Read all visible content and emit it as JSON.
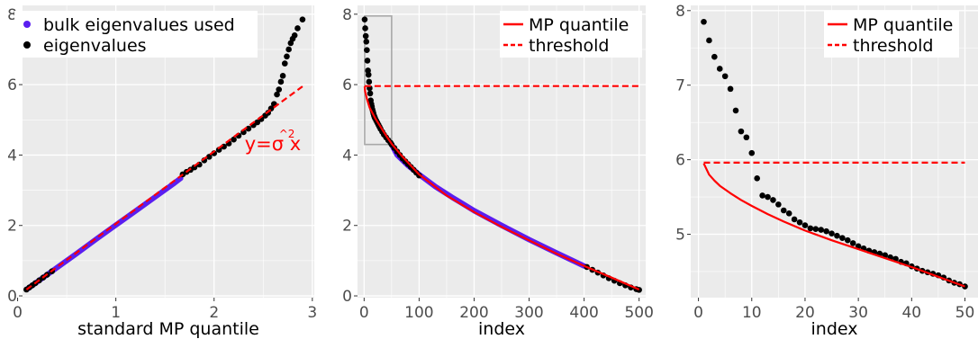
{
  "chart_data": [
    {
      "type": "scatter",
      "xlabel": "standard MP quantile",
      "ylabel": "",
      "xlim": [
        0.05,
        3.02
      ],
      "ylim": [
        -0.05,
        8.25
      ],
      "xticks": [
        0,
        1,
        2,
        3
      ],
      "yticks": [
        0,
        2,
        4,
        6,
        8
      ],
      "grid": true,
      "legend_position": "top-left",
      "colors": {
        "bulk": "#5a1ef0",
        "eigen": "#000000",
        "line": "#ff0000",
        "panel": "#ebebeb"
      },
      "legend": [
        {
          "label": "bulk eigenvalues used",
          "color": "#5a1ef0",
          "kind": "point"
        },
        {
          "label": "eigenvalues",
          "color": "#000000",
          "kind": "point"
        }
      ],
      "annotation": {
        "text": "y=σ^2x",
        "x": 2.55,
        "y": 4.4,
        "color": "#ff0000"
      },
      "series": [
        {
          "name": "bulk eigenvalues used",
          "style": "line-points",
          "color": "#5a1ef0",
          "x": [
            0.09,
            0.2,
            0.4,
            0.6,
            0.8,
            1.0,
            1.2,
            1.4,
            1.6,
            1.66
          ],
          "y": [
            0.18,
            0.4,
            0.8,
            1.2,
            1.61,
            2.01,
            2.41,
            2.81,
            3.21,
            3.34
          ]
        },
        {
          "name": "eigenvalues",
          "style": "points",
          "color": "#000000",
          "x": [
            0.09,
            0.12,
            0.15,
            0.18,
            0.22,
            0.26,
            0.3,
            0.35,
            1.68,
            1.72,
            1.76,
            1.8,
            1.85,
            1.9,
            1.95,
            2.0,
            2.05,
            2.1,
            2.15,
            2.2,
            2.25,
            2.3,
            2.35,
            2.4,
            2.44,
            2.48,
            2.52,
            2.55,
            2.58,
            2.61,
            2.64,
            2.66,
            2.68,
            2.7,
            2.72,
            2.74,
            2.76,
            2.78,
            2.8,
            2.82,
            2.85,
            2.9
          ],
          "y": [
            0.18,
            0.24,
            0.3,
            0.36,
            0.44,
            0.52,
            0.6,
            0.7,
            3.45,
            3.52,
            3.58,
            3.65,
            3.73,
            3.85,
            3.95,
            4.05,
            4.15,
            4.24,
            4.33,
            4.44,
            4.55,
            4.65,
            4.75,
            4.85,
            4.93,
            5.02,
            5.12,
            5.2,
            5.32,
            5.45,
            5.72,
            5.86,
            6.08,
            6.25,
            6.6,
            6.8,
            7.0,
            7.18,
            7.3,
            7.4,
            7.6,
            7.85
          ]
        },
        {
          "name": "y=σ^2x",
          "style": "dashed-line",
          "color": "#ff0000",
          "x": [
            0.09,
            2.9
          ],
          "y": [
            0.18,
            5.95
          ]
        }
      ]
    },
    {
      "type": "line",
      "xlabel": "index",
      "ylabel": "",
      "xlim": [
        -12,
        512
      ],
      "ylim": [
        -0.05,
        8.25
      ],
      "xticks": [
        0,
        100,
        200,
        300,
        400,
        500
      ],
      "yticks": [
        0,
        2,
        4,
        6,
        8
      ],
      "grid": true,
      "legend_position": "top-right",
      "colors": {
        "bulk": "#5a1ef0",
        "eigen": "#000000",
        "line": "#ff0000",
        "panel": "#ebebeb"
      },
      "legend": [
        {
          "label": "MP quantile",
          "color": "#ff0000",
          "kind": "solid"
        },
        {
          "label": "threshold",
          "color": "#ff0000",
          "kind": "dashed"
        }
      ],
      "zoom_box": {
        "x": [
          1,
          50
        ],
        "y": [
          4.3,
          7.95
        ]
      },
      "series": [
        {
          "name": "bulk eigenvalues used",
          "style": "line-points",
          "color": "#5a1ef0",
          "x": [
            50,
            60,
            80,
            100,
            130,
            160,
            200,
            250,
            300,
            350,
            400
          ],
          "y": [
            4.3,
            4.0,
            3.7,
            3.45,
            3.1,
            2.8,
            2.42,
            2.0,
            1.6,
            1.22,
            0.85
          ]
        },
        {
          "name": "eigenvalues",
          "style": "points",
          "color": "#000000",
          "x": [
            1,
            2,
            3,
            4,
            5,
            6,
            7,
            8,
            9,
            10,
            11,
            12,
            13,
            14,
            15,
            16,
            17,
            18,
            19,
            20,
            22,
            24,
            26,
            28,
            30,
            33,
            36,
            40,
            44,
            48,
            50,
            55,
            60,
            65,
            70,
            75,
            80,
            85,
            90,
            95,
            100,
            405,
            415,
            425,
            435,
            445,
            455,
            465,
            475,
            485,
            495,
            500
          ],
          "y": [
            7.85,
            7.6,
            7.38,
            7.22,
            6.98,
            6.68,
            6.4,
            6.28,
            6.08,
            5.9,
            5.75,
            5.55,
            5.45,
            5.38,
            5.3,
            5.24,
            5.18,
            5.12,
            5.08,
            5.04,
            4.98,
            4.92,
            4.86,
            4.8,
            4.74,
            4.66,
            4.58,
            4.5,
            4.42,
            4.35,
            4.3,
            4.2,
            4.1,
            4.0,
            3.9,
            3.82,
            3.74,
            3.66,
            3.58,
            3.5,
            3.42,
            0.82,
            0.74,
            0.66,
            0.58,
            0.5,
            0.43,
            0.36,
            0.3,
            0.24,
            0.19,
            0.17
          ]
        },
        {
          "name": "MP quantile",
          "style": "line",
          "color": "#ff0000",
          "x": [
            1,
            2,
            5,
            10,
            20,
            30,
            40,
            50,
            70,
            100,
            150,
            200,
            250,
            300,
            350,
            400,
            450,
            500
          ],
          "y": [
            5.95,
            5.8,
            5.6,
            5.35,
            5.05,
            4.8,
            4.55,
            4.32,
            3.95,
            3.45,
            2.85,
            2.38,
            1.96,
            1.58,
            1.2,
            0.85,
            0.52,
            0.18
          ]
        },
        {
          "name": "threshold",
          "style": "dashed-line",
          "color": "#ff0000",
          "x": [
            1,
            500
          ],
          "y": [
            5.96,
            5.96
          ]
        }
      ]
    },
    {
      "type": "line",
      "xlabel": "index",
      "ylabel": "",
      "xlim": [
        -1.45,
        52.45
      ],
      "ylim": [
        4.15,
        8.07
      ],
      "xticks": [
        0,
        10,
        20,
        30,
        40,
        50
      ],
      "yticks": [
        5,
        6,
        7,
        8
      ],
      "grid": true,
      "legend_position": "top-right",
      "colors": {
        "eigen": "#000000",
        "line": "#ff0000",
        "panel": "#ebebeb"
      },
      "legend": [
        {
          "label": "MP quantile",
          "color": "#ff0000",
          "kind": "solid"
        },
        {
          "label": "threshold",
          "color": "#ff0000",
          "kind": "dashed"
        }
      ],
      "series": [
        {
          "name": "eigenvalues",
          "style": "points",
          "color": "#000000",
          "x": [
            1,
            2,
            3,
            4,
            5,
            6,
            7,
            8,
            9,
            10,
            11,
            12,
            13,
            14,
            15,
            16,
            17,
            18,
            19,
            20,
            21,
            22,
            23,
            24,
            25,
            26,
            27,
            28,
            29,
            30,
            31,
            32,
            33,
            34,
            35,
            36,
            37,
            38,
            39,
            40,
            41,
            42,
            43,
            44,
            45,
            46,
            47,
            48,
            49,
            50
          ],
          "y": [
            7.85,
            7.6,
            7.38,
            7.22,
            7.12,
            6.95,
            6.66,
            6.38,
            6.3,
            6.09,
            5.75,
            5.52,
            5.5,
            5.46,
            5.4,
            5.32,
            5.28,
            5.2,
            5.16,
            5.12,
            5.08,
            5.07,
            5.06,
            5.04,
            5.01,
            4.98,
            4.95,
            4.92,
            4.88,
            4.84,
            4.81,
            4.78,
            4.76,
            4.74,
            4.72,
            4.69,
            4.67,
            4.63,
            4.61,
            4.57,
            4.54,
            4.51,
            4.49,
            4.47,
            4.45,
            4.42,
            4.38,
            4.35,
            4.33,
            4.3
          ]
        },
        {
          "name": "MP quantile",
          "style": "line",
          "color": "#ff0000",
          "x": [
            1,
            2,
            3,
            4,
            6,
            8,
            10,
            13,
            16,
            20,
            25,
            30,
            35,
            40,
            45,
            50
          ],
          "y": [
            5.95,
            5.8,
            5.72,
            5.65,
            5.55,
            5.46,
            5.38,
            5.27,
            5.17,
            5.05,
            4.92,
            4.8,
            4.68,
            4.56,
            4.43,
            4.3
          ]
        },
        {
          "name": "threshold",
          "style": "dashed-line",
          "color": "#ff0000",
          "x": [
            1,
            50
          ],
          "y": [
            5.96,
            5.96
          ]
        }
      ]
    }
  ]
}
